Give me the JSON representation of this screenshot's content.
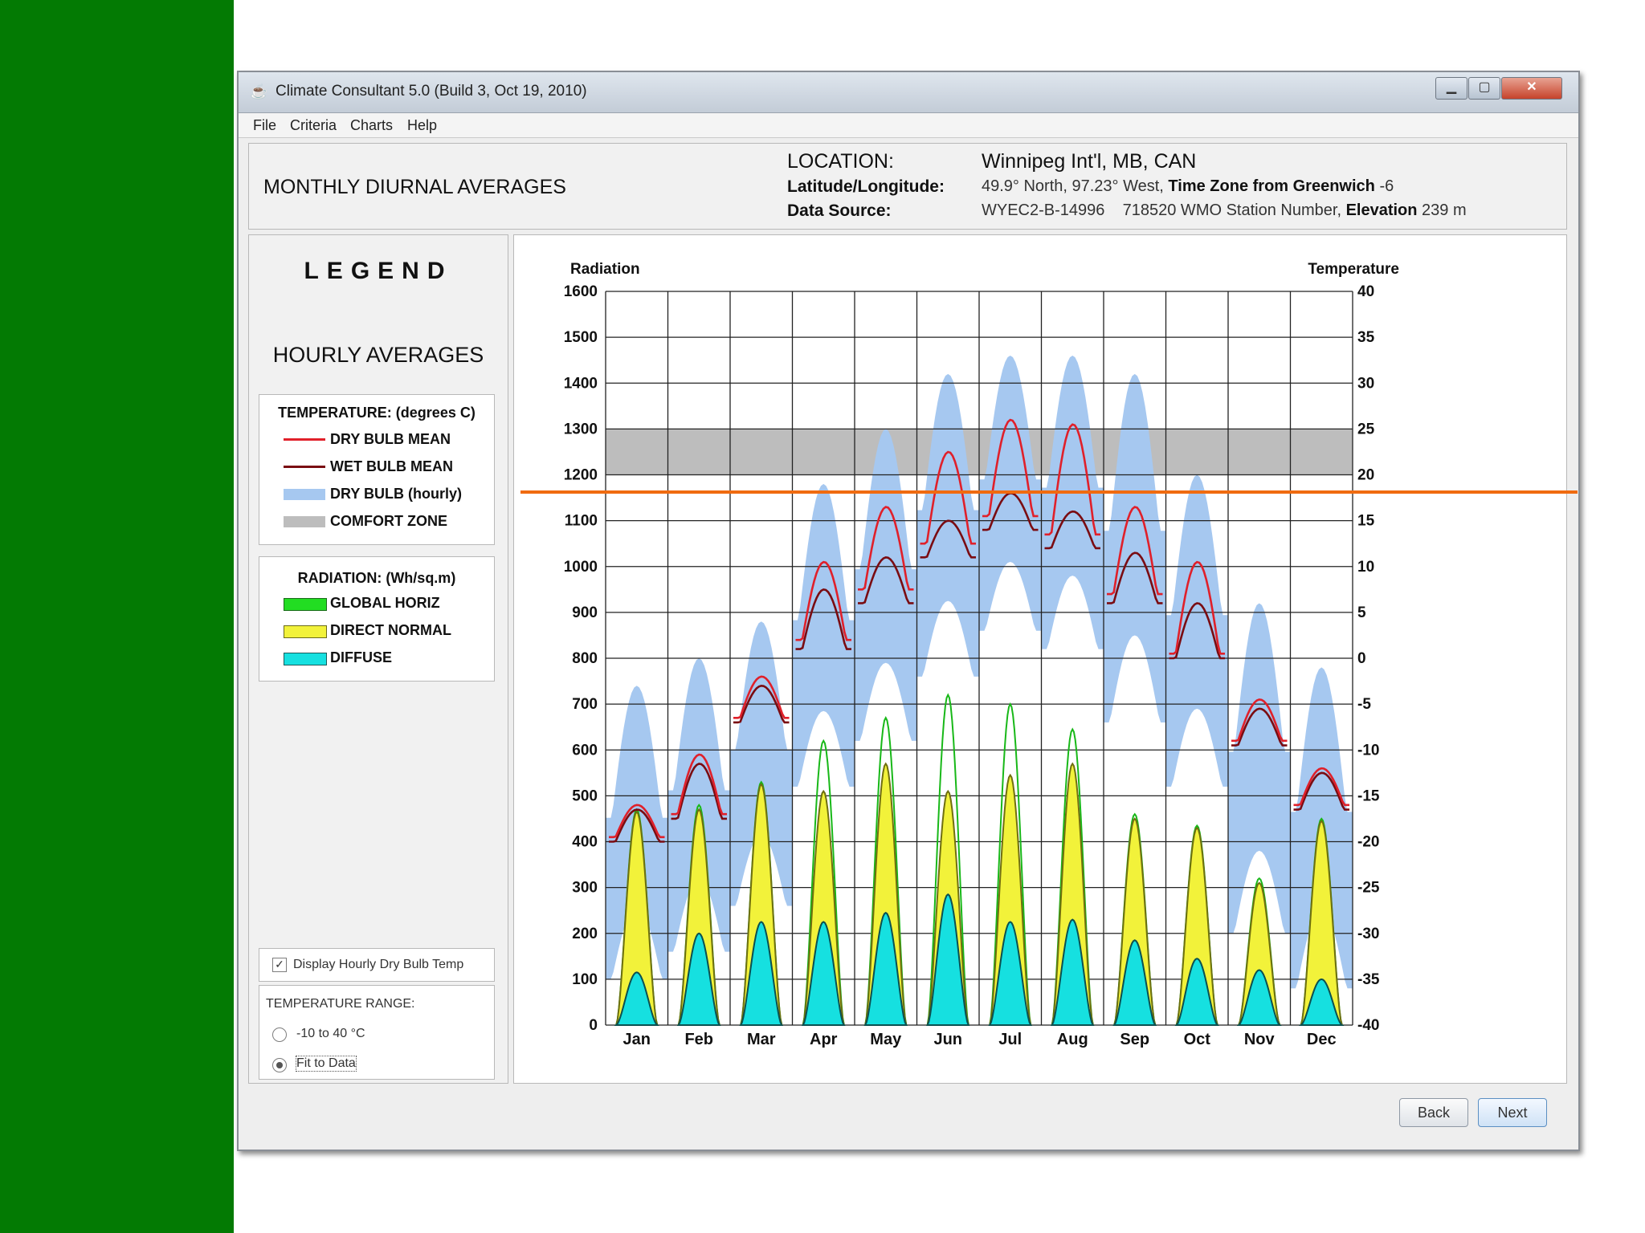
{
  "window": {
    "title": "Climate Consultant 5.0 (Build 3, Oct 19, 2010)"
  },
  "menu": [
    "File",
    "Criteria",
    "Charts",
    "Help"
  ],
  "header": {
    "title": "MONTHLY DIURNAL AVERAGES",
    "location_label": "LOCATION:",
    "location_value": "Winnipeg Int'l, MB, CAN",
    "latlon_label": "Latitude/Longitude:",
    "latlon_value": "49.9° North, 97.23° West,",
    "tz_label": "Time Zone from Greenwich",
    "tz_value": "-6",
    "source_label": "Data Source:",
    "source_value": "WYEC2-B-14996",
    "wmo_value": "718520 WMO Station Number,",
    "elev_label": "Elevation",
    "elev_value": "239 m"
  },
  "legend": {
    "title": "LEGEND",
    "subtitle": "HOURLY AVERAGES",
    "temp_header": "TEMPERATURE: (degrees C)",
    "temp_items": [
      {
        "label": "DRY BULB MEAN",
        "color": "#e0202a"
      },
      {
        "label": "WET BULB MEAN",
        "color": "#7a0c12"
      },
      {
        "label": "DRY BULB (hourly)",
        "color": "#a6c8f0"
      },
      {
        "label": "COMFORT ZONE",
        "color": "#bdbdbd"
      }
    ],
    "rad_header": "RADIATION: (Wh/sq.m)",
    "rad_items": [
      {
        "label": "GLOBAL HORIZ",
        "color": "#22dd22"
      },
      {
        "label": "DIRECT NORMAL",
        "color": "#f2f23a"
      },
      {
        "label": "DIFFUSE",
        "color": "#16e0e0"
      }
    ]
  },
  "options": {
    "display_hourly_label": "Display Hourly Dry Bulb Temp",
    "display_hourly_checked": true,
    "temp_range_label": "TEMPERATURE RANGE:",
    "range_options": [
      "-10 to 40 °C",
      "Fit to Data"
    ],
    "range_selected": "Fit to Data"
  },
  "buttons": {
    "back": "Back",
    "next": "Next"
  },
  "chart_data": {
    "type": "line",
    "y_left_label": "Radiation",
    "y_right_label": "Temperature",
    "y_left_ticks": [
      0,
      100,
      200,
      300,
      400,
      500,
      600,
      700,
      800,
      900,
      1000,
      1100,
      1200,
      1300,
      1400,
      1500,
      1600
    ],
    "y_right_ticks": [
      -40,
      -35,
      -30,
      -25,
      -20,
      -15,
      -10,
      -5,
      0,
      5,
      10,
      15,
      20,
      25,
      30,
      35,
      40
    ],
    "ylim_left": [
      0,
      1600
    ],
    "ylim_right": [
      -40,
      40
    ],
    "categories": [
      "Jan",
      "Feb",
      "Mar",
      "Apr",
      "May",
      "Jun",
      "Jul",
      "Aug",
      "Sep",
      "Oct",
      "Nov",
      "Dec"
    ],
    "grid": true,
    "comfort_zone_temp": [
      20,
      25
    ],
    "series": [
      {
        "name": "DRY BULB MEAN",
        "unit": "°C",
        "min": [
          -19.5,
          -17.0,
          -6.5,
          2.0,
          7.5,
          12.5,
          15.5,
          13.5,
          7.0,
          0.5,
          -9.0,
          -16.0
        ],
        "max": [
          -16.0,
          -10.5,
          -2.0,
          10.5,
          16.5,
          22.5,
          26.0,
          25.5,
          16.5,
          10.5,
          -4.5,
          -12.0
        ]
      },
      {
        "name": "WET BULB MEAN",
        "unit": "°C",
        "min": [
          -20.0,
          -17.5,
          -7.0,
          1.0,
          6.0,
          11.0,
          14.0,
          12.0,
          6.0,
          0.0,
          -9.5,
          -16.5
        ],
        "max": [
          -16.5,
          -11.5,
          -3.0,
          7.5,
          11.0,
          15.0,
          18.0,
          16.0,
          11.5,
          6.0,
          -5.5,
          -12.5
        ]
      },
      {
        "name": "DRY BULB (hourly)",
        "unit": "°C",
        "min": [
          -35,
          -32,
          -27,
          -14,
          -9,
          -2,
          3,
          1,
          -7,
          -14,
          -30,
          -36
        ],
        "max": [
          -3,
          0,
          4,
          19,
          25,
          31,
          33,
          33,
          31,
          20,
          6,
          -1
        ]
      },
      {
        "name": "GLOBAL HORIZ",
        "unit": "Wh/sq.m",
        "values": [
          470,
          480,
          530,
          620,
          670,
          720,
          700,
          645,
          460,
          435,
          320,
          450
        ]
      },
      {
        "name": "DIRECT NORMAL",
        "unit": "Wh/sq.m",
        "values": [
          465,
          470,
          525,
          510,
          570,
          510,
          545,
          570,
          450,
          430,
          310,
          445
        ]
      },
      {
        "name": "DIFFUSE",
        "unit": "Wh/sq.m",
        "values": [
          115,
          200,
          225,
          225,
          245,
          285,
          225,
          230,
          185,
          145,
          120,
          100
        ]
      }
    ]
  }
}
